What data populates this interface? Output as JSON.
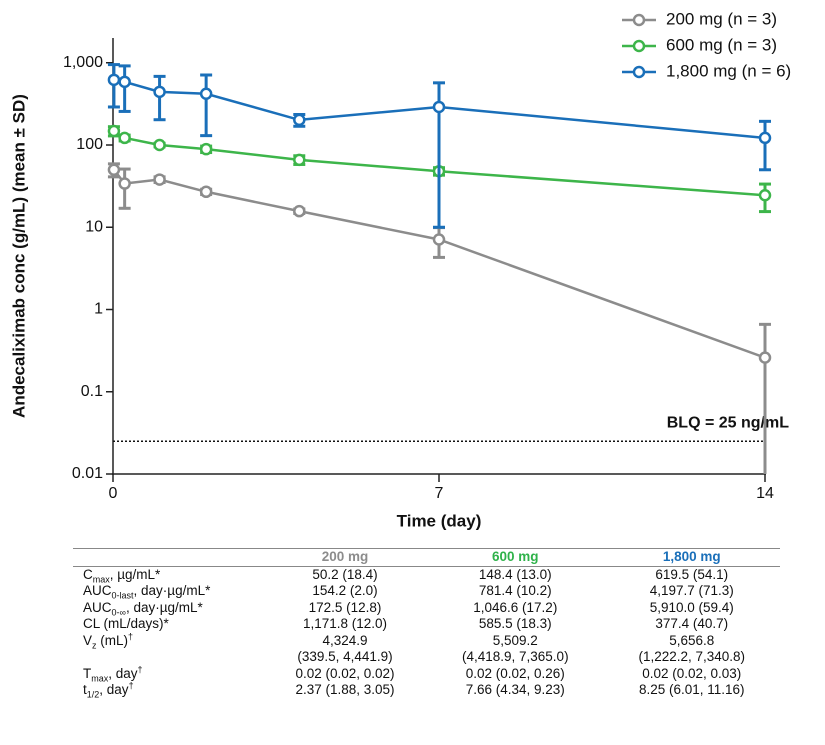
{
  "chart_data": {
    "type": "line",
    "x_label": "Time (day)",
    "y_label": "Andecaliximab conc (g/mL) (mean ± SD)",
    "x": [
      0.02,
      0.25,
      1,
      2,
      4,
      7,
      14
    ],
    "series": [
      {
        "name": "200 mg (n = 3)",
        "color": "#8c8c8c",
        "values": [
          50,
          34,
          38,
          27,
          15.7,
          7.1,
          0.26
        ],
        "errors": [
          9,
          17,
          3,
          2,
          1,
          2.8,
          0.4
        ]
      },
      {
        "name": "600 mg (n = 3)",
        "color": "#3db54a",
        "values": [
          148,
          122,
          100,
          89,
          66,
          48,
          24.5
        ],
        "errors": [
          19,
          10,
          5,
          8,
          8,
          5,
          9
        ]
      },
      {
        "name": "1,800 mg (n = 6)",
        "color": "#1a6fb9",
        "values": [
          620,
          586,
          443,
          420,
          202,
          290,
          122
        ],
        "errors": [
          330,
          330,
          240,
          290,
          33,
          280,
          72
        ]
      }
    ],
    "xlim": [
      0,
      14
    ],
    "xticks": [
      0,
      7,
      14
    ],
    "ylim": [
      0.01,
      2000
    ],
    "y_scale": "log",
    "yticks": [
      0.01,
      0.1,
      1,
      10,
      100,
      {
        "value": 1000,
        "label": "1,000"
      }
    ],
    "blq_line": 0.025,
    "blq_label": "BLQ = 25 ng/mL",
    "legend": "top-right"
  },
  "table": {
    "header": [
      "200 mg",
      "600 mg",
      "1,800 mg"
    ],
    "rows": [
      {
        "label": {
          "main": "C",
          "sub": "max",
          "rest": ", µg/mL*"
        },
        "cells": [
          [
            "50.2 (18.4)"
          ],
          [
            "148.4 (13.0)"
          ],
          [
            "619.5 (54.1)"
          ]
        ]
      },
      {
        "label": {
          "main": "AUC",
          "sub": "0-last",
          "rest": ", day·µg/mL*"
        },
        "cells": [
          [
            "154.2 (2.0)"
          ],
          [
            "781.4 (10.2)"
          ],
          [
            "4,197.7 (71.3)"
          ]
        ]
      },
      {
        "label": {
          "main": "AUC",
          "sub": "0-∞",
          "rest": ", day·µg/mL*"
        },
        "cells": [
          [
            "172.5 (12.8)"
          ],
          [
            "1,046.6 (17.2)"
          ],
          [
            "5,910.0 (59.4)"
          ]
        ]
      },
      {
        "label": {
          "main": "CL (mL/days)*"
        },
        "cells": [
          [
            "1,171.8 (12.0)"
          ],
          [
            "585.5 (18.3)"
          ],
          [
            "377.4 (40.7)"
          ]
        ]
      },
      {
        "label": {
          "main": "V",
          "sub": "z",
          "rest": " (mL)",
          "sup": "†"
        },
        "cells": [
          [
            "4,324.9",
            "(339.5, 4,441.9)"
          ],
          [
            "5,509.2",
            "(4,418.9, 7,365.0)"
          ],
          [
            "5,656.8",
            "(1,222.2, 7,340.8)"
          ]
        ]
      },
      {
        "label": {
          "main": "T",
          "sub": "max",
          "rest": ", day",
          "sup": "†"
        },
        "cells": [
          [
            "0.02 (0.02, 0.02)"
          ],
          [
            "0.02 (0.02, 0.26)"
          ],
          [
            "0.02 (0.02, 0.03)"
          ]
        ]
      },
      {
        "label": {
          "main": "t",
          "sub": "1/2",
          "rest": ", day",
          "sup": "†"
        },
        "cells": [
          [
            "2.37 (1.88, 3.05)"
          ],
          [
            "7.66 (4.34, 9.23)"
          ],
          [
            "8.25 (6.01, 11.16)"
          ]
        ]
      }
    ]
  }
}
